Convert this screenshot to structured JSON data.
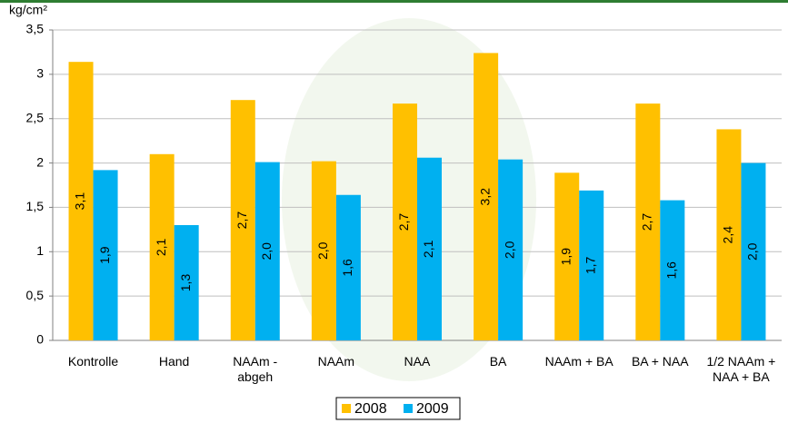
{
  "chart_data": {
    "type": "bar",
    "y_label": "kg/cm²",
    "categories": [
      "Kontrolle",
      "Hand",
      "NAAm -\nabgeh",
      "NAAm",
      "NAA",
      "BA",
      "NAAm + BA",
      "BA + NAA",
      "1/2 NAAm +\nNAA + BA"
    ],
    "series": [
      {
        "name": "2008",
        "color": "#ffc000",
        "values": [
          3.14,
          2.1,
          2.71,
          2.02,
          2.67,
          3.24,
          1.89,
          2.67,
          2.38
        ],
        "value_labels": [
          "3,1",
          "2,1",
          "2,7",
          "2,0",
          "2,7",
          "3,2",
          "1,9",
          "2,7",
          "2,4"
        ]
      },
      {
        "name": "2009",
        "color": "#00b0f0",
        "values": [
          1.92,
          1.3,
          2.01,
          1.64,
          2.06,
          2.04,
          1.69,
          1.58,
          2.0
        ],
        "value_labels": [
          "1,9",
          "1,3",
          "2,0",
          "1,6",
          "2,1",
          "2,0",
          "1,7",
          "1,6",
          "2,0"
        ]
      }
    ],
    "ylim": [
      0,
      3.5
    ],
    "yticks": [
      0,
      {
        "value": 0.5,
        "label": "0,5"
      },
      1,
      {
        "value": 1.5,
        "label": "1,5"
      },
      2,
      {
        "value": 2.5,
        "label": "2,5"
      },
      3,
      {
        "value": 3.5,
        "label": "3,5"
      }
    ],
    "grid": true,
    "legend": "bottom"
  }
}
